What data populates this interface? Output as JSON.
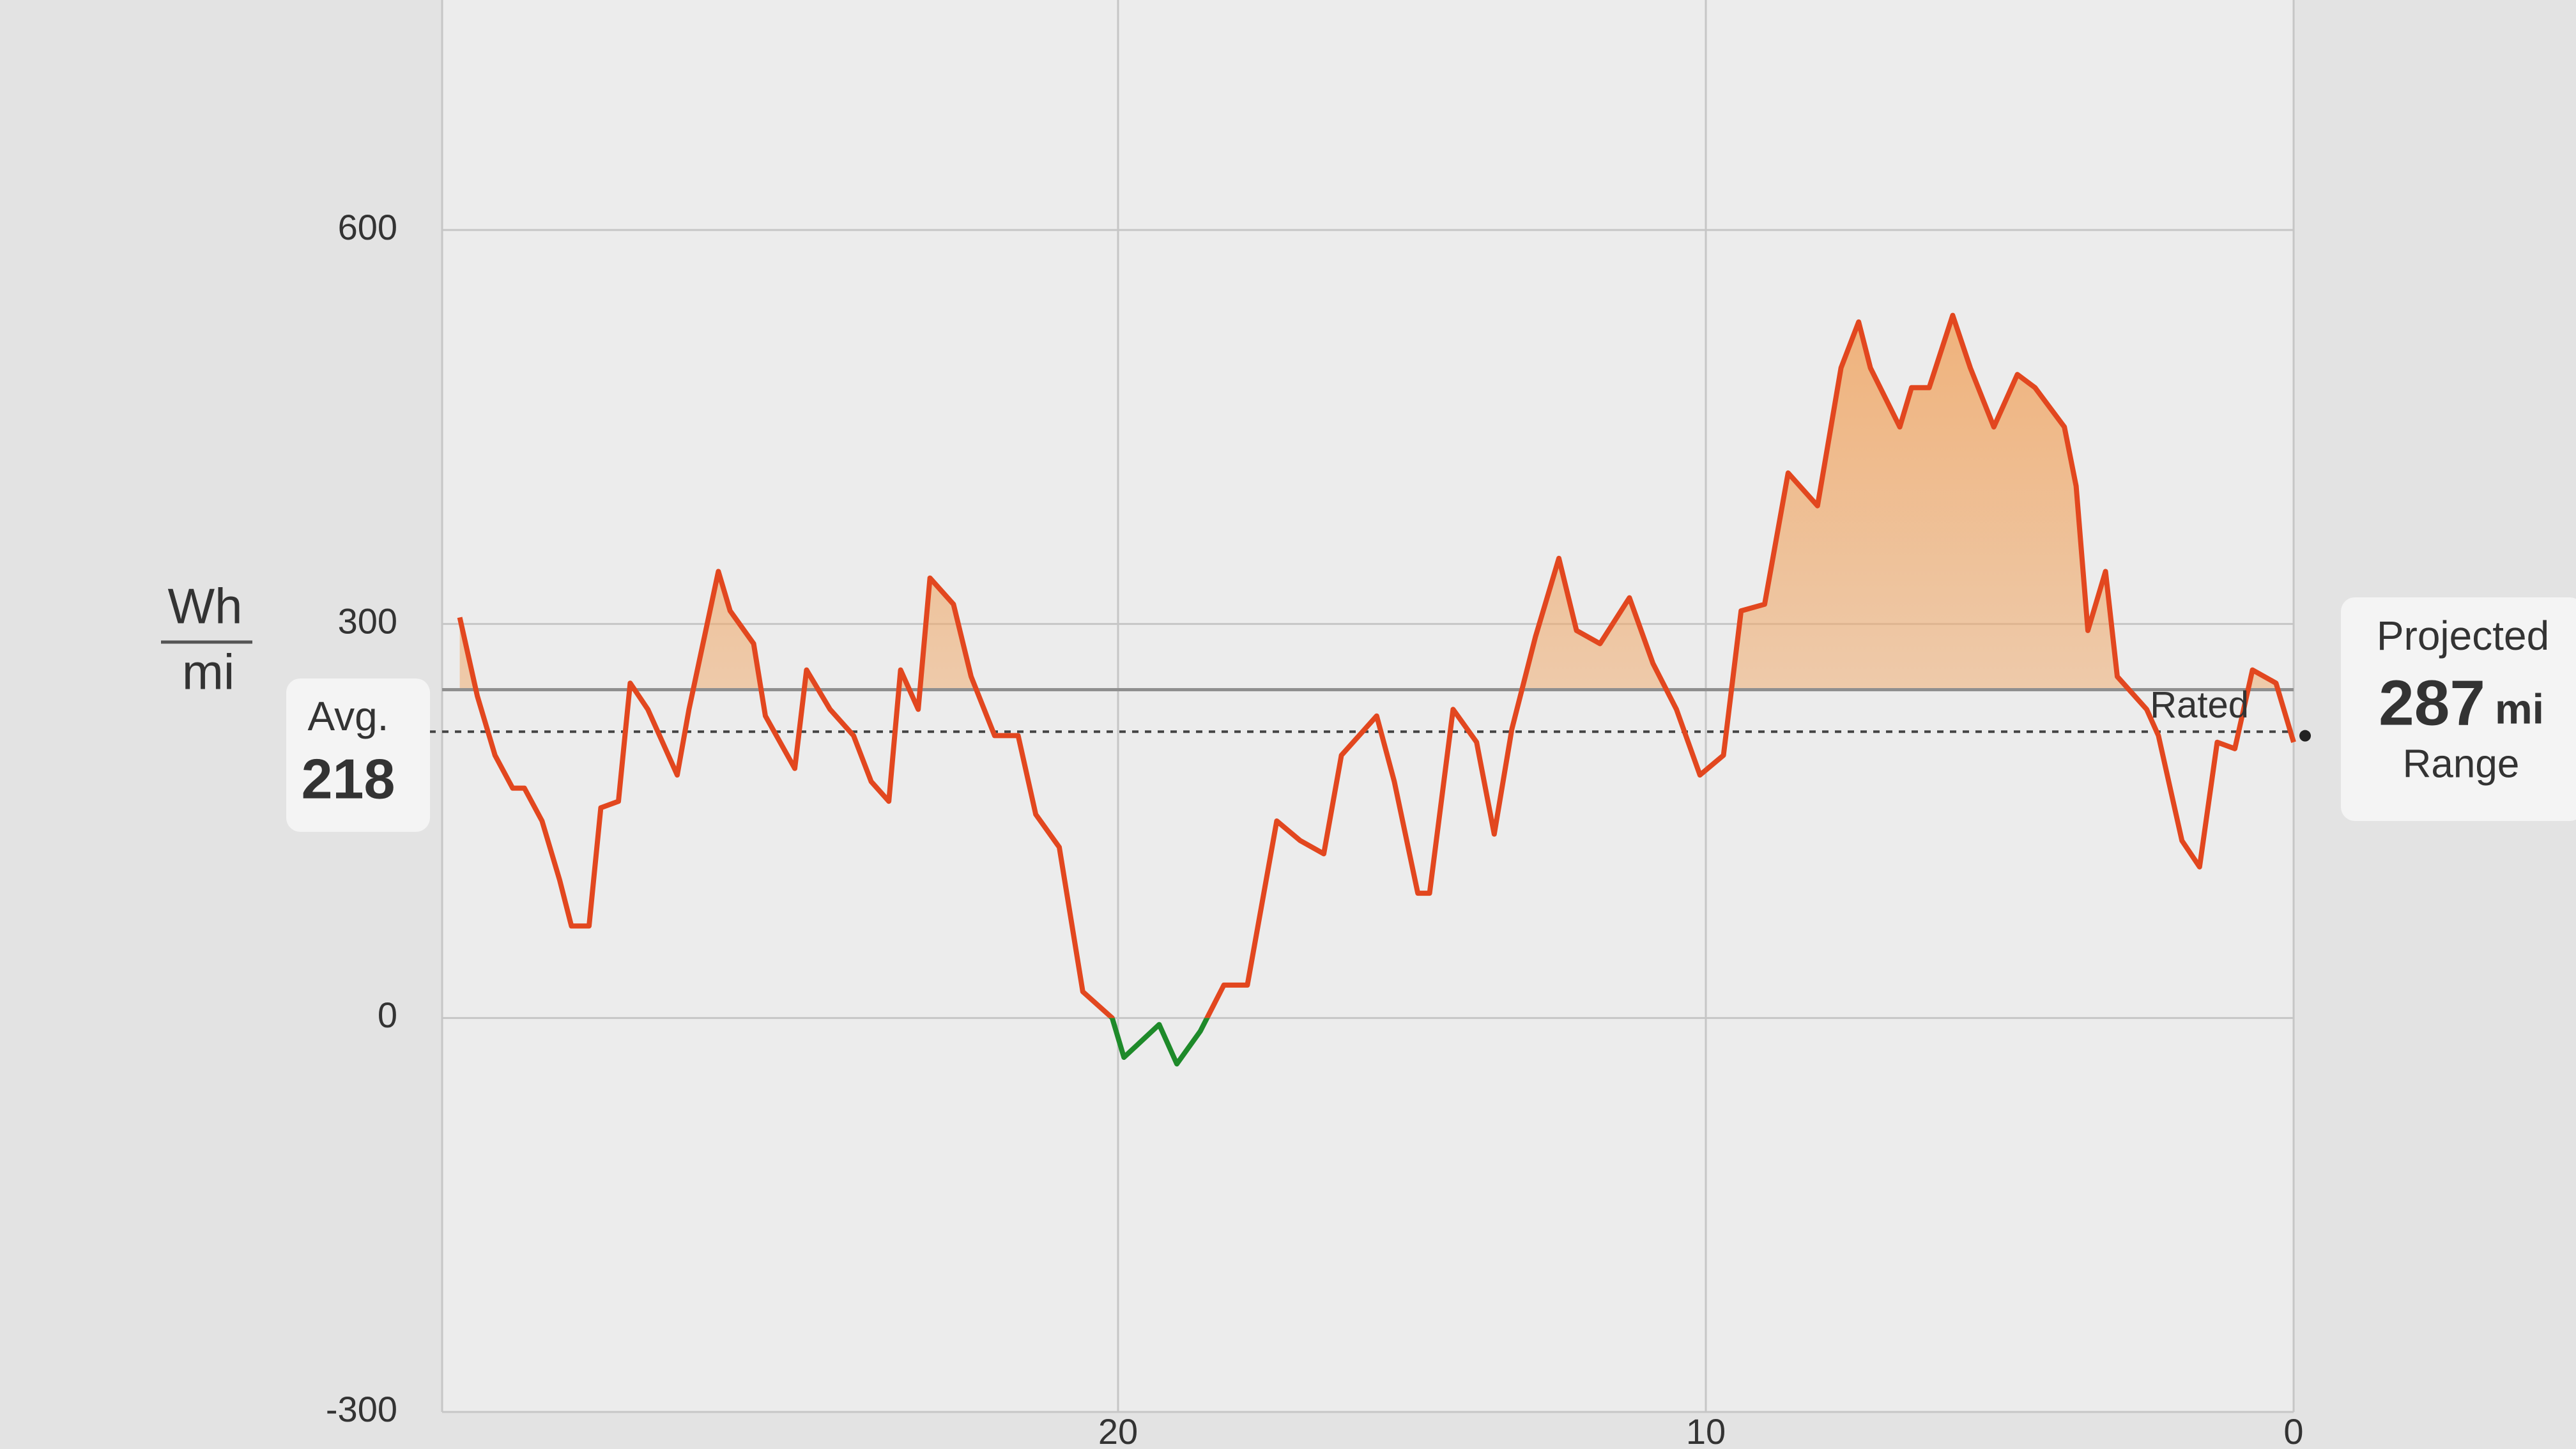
{
  "chart_data": {
    "type": "line",
    "y_unit": {
      "numerator": "Wh",
      "denominator": "mi"
    },
    "x": [
      31.2,
      30.9,
      30.6,
      30.3,
      30.1,
      29.8,
      29.5,
      29.3,
      29.0,
      28.8,
      28.5,
      28.3,
      28.0,
      27.5,
      27.3,
      26.8,
      26.6,
      26.2,
      26.0,
      25.5,
      25.3,
      24.9,
      24.5,
      24.2,
      23.9,
      23.7,
      23.4,
      23.2,
      22.8,
      22.5,
      22.1,
      21.7,
      21.4,
      21.0,
      20.6,
      20.1,
      19.9,
      19.3,
      19.0,
      18.6,
      18.2,
      17.8,
      17.3,
      16.9,
      16.5,
      16.2,
      15.9,
      15.6,
      15.3,
      14.9,
      14.7,
      14.3,
      13.9,
      13.6,
      13.3,
      12.9,
      12.5,
      12.2,
      11.8,
      11.3,
      10.9,
      10.5,
      10.1,
      9.7,
      9.4,
      9.0,
      8.6,
      8.1,
      7.7,
      7.4,
      7.2,
      6.7,
      6.5,
      6.2,
      5.8,
      5.5,
      5.1,
      4.7,
      4.4,
      3.9,
      3.7,
      3.5,
      3.2,
      3.0,
      2.5,
      2.3,
      1.9,
      1.6,
      1.3,
      1.0,
      0.7,
      0.3,
      0.0
    ],
    "series": [
      {
        "color": "#e2471f",
        "negative_color": "#1e8a2a",
        "values": [
          305,
          245,
          200,
          175,
          175,
          150,
          105,
          70,
          70,
          160,
          165,
          255,
          235,
          185,
          235,
          340,
          310,
          285,
          230,
          190,
          265,
          235,
          215,
          180,
          165,
          265,
          235,
          335,
          315,
          260,
          215,
          215,
          155,
          130,
          20,
          0,
          -30,
          -5,
          -35,
          -10,
          25,
          25,
          150,
          135,
          125,
          200,
          215,
          230,
          180,
          95,
          95,
          235,
          210,
          140,
          220,
          290,
          350,
          295,
          285,
          320,
          270,
          235,
          185,
          200,
          310,
          315,
          415,
          390,
          495,
          530,
          495,
          450,
          480,
          480,
          535,
          495,
          450,
          490,
          480,
          450,
          405,
          295,
          340,
          260,
          235,
          215,
          135,
          115,
          210,
          205,
          265,
          255,
          210
        ]
      }
    ],
    "xlim": [
      31.5,
      0
    ],
    "xticks": [
      20,
      10,
      0
    ],
    "ylim": [
      -300,
      600
    ],
    "yticks": [
      -300,
      0,
      300,
      600
    ],
    "grid": true,
    "fill_color": "#f0a868",
    "average": {
      "label": "Avg.",
      "value": 218
    },
    "rated": {
      "label": "Rated",
      "value": 250
    },
    "projected": {
      "title": "Projected",
      "value": 287,
      "unit": "mi",
      "caption": "Range"
    }
  }
}
